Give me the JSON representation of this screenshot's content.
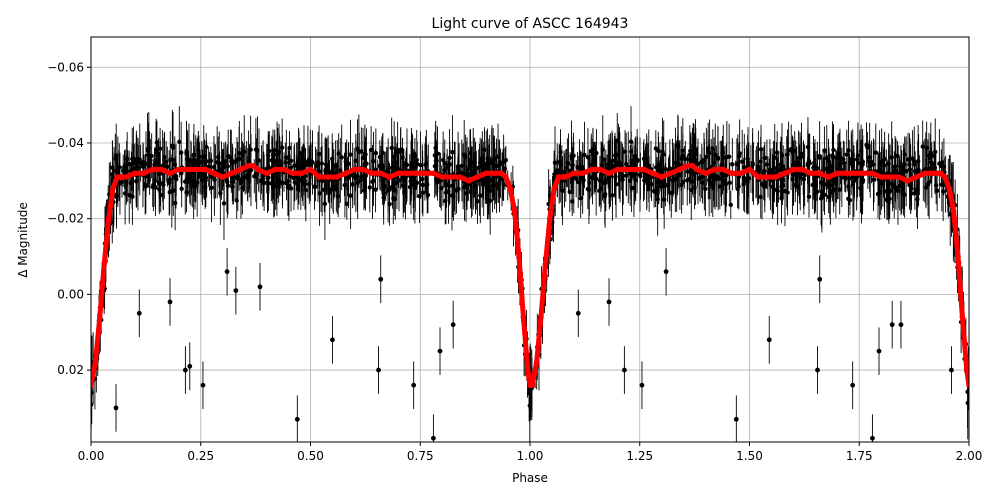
{
  "chart_data": {
    "type": "scatter",
    "title": "Light curve of ASCC 164943",
    "xlabel": "Phase",
    "ylabel": "Δ Magnitude",
    "xlim": [
      0.0,
      2.0
    ],
    "ylim": [
      0.039,
      -0.068
    ],
    "y_inverted": true,
    "grid": true,
    "x_ticks": [
      0.0,
      0.25,
      0.5,
      0.75,
      1.0,
      1.25,
      1.5,
      1.75,
      2.0
    ],
    "x_tick_labels": [
      "0.00",
      "0.25",
      "0.50",
      "0.75",
      "1.00",
      "1.25",
      "1.50",
      "1.75",
      "2.00"
    ],
    "y_ticks": [
      -0.06,
      -0.04,
      -0.02,
      0.0,
      0.02
    ],
    "y_tick_labels": [
      "−0.06",
      "−0.04",
      "−0.02",
      "0.00",
      "0.02"
    ],
    "series": [
      {
        "kind": "observations",
        "color": "#000000",
        "style": "points with vertical error bars",
        "baseline_mean": -0.031,
        "baseline_scatter": 0.008,
        "typical_error": 0.007,
        "outliers": [
          {
            "x": 0.057,
            "y": 0.03
          },
          {
            "x": 0.11,
            "y": 0.005
          },
          {
            "x": 0.18,
            "y": 0.002
          },
          {
            "x": 0.215,
            "y": 0.02
          },
          {
            "x": 0.225,
            "y": 0.019
          },
          {
            "x": 0.255,
            "y": 0.024
          },
          {
            "x": 0.31,
            "y": -0.006
          },
          {
            "x": 0.33,
            "y": -0.001
          },
          {
            "x": 0.385,
            "y": -0.002
          },
          {
            "x": 0.47,
            "y": 0.033
          },
          {
            "x": 0.55,
            "y": 0.012
          },
          {
            "x": 0.655,
            "y": 0.02
          },
          {
            "x": 0.66,
            "y": -0.004
          },
          {
            "x": 0.735,
            "y": 0.024
          },
          {
            "x": 0.78,
            "y": 0.038
          },
          {
            "x": 0.795,
            "y": 0.015
          },
          {
            "x": 0.825,
            "y": 0.008
          },
          {
            "x": 1.11,
            "y": 0.005
          },
          {
            "x": 1.18,
            "y": 0.002
          },
          {
            "x": 1.215,
            "y": 0.02
          },
          {
            "x": 1.255,
            "y": 0.024
          },
          {
            "x": 1.31,
            "y": -0.006
          },
          {
            "x": 1.47,
            "y": 0.033
          },
          {
            "x": 1.545,
            "y": 0.012
          },
          {
            "x": 1.655,
            "y": 0.02
          },
          {
            "x": 1.66,
            "y": -0.004
          },
          {
            "x": 1.735,
            "y": 0.024
          },
          {
            "x": 1.78,
            "y": 0.038
          },
          {
            "x": 1.795,
            "y": 0.015
          },
          {
            "x": 1.825,
            "y": 0.008
          },
          {
            "x": 1.845,
            "y": 0.008
          },
          {
            "x": 1.96,
            "y": 0.02
          }
        ]
      },
      {
        "kind": "binned-model",
        "color": "#ff0000",
        "style": "thick line of red dots",
        "x": [
          0.0,
          0.01,
          0.02,
          0.03,
          0.04,
          0.05,
          0.06,
          0.07,
          0.08,
          0.1,
          0.12,
          0.14,
          0.16,
          0.18,
          0.2,
          0.22,
          0.24,
          0.26,
          0.28,
          0.3,
          0.32,
          0.34,
          0.36,
          0.37,
          0.38,
          0.4,
          0.42,
          0.44,
          0.46,
          0.48,
          0.5,
          0.52,
          0.54,
          0.56,
          0.58,
          0.6,
          0.62,
          0.64,
          0.66,
          0.68,
          0.7,
          0.72,
          0.74,
          0.76,
          0.78,
          0.8,
          0.82,
          0.84,
          0.86,
          0.88,
          0.9,
          0.92,
          0.935,
          0.945,
          0.955,
          0.965,
          0.975,
          0.985,
          0.995,
          1.0,
          1.005,
          1.015,
          1.025,
          1.035,
          1.045,
          1.055,
          1.065,
          1.075,
          1.08,
          1.1,
          1.12,
          1.14,
          1.16,
          1.18,
          1.2,
          1.22,
          1.24,
          1.26,
          1.28,
          1.3,
          1.32,
          1.34,
          1.36,
          1.37,
          1.38,
          1.4,
          1.42,
          1.44,
          1.46,
          1.48,
          1.5,
          1.52,
          1.54,
          1.56,
          1.58,
          1.6,
          1.62,
          1.64,
          1.66,
          1.68,
          1.7,
          1.72,
          1.74,
          1.76,
          1.78,
          1.8,
          1.82,
          1.84,
          1.86,
          1.88,
          1.9,
          1.92,
          1.935,
          1.945,
          1.955,
          1.965,
          1.975,
          1.985,
          1.995,
          2.0
        ],
        "y": [
          0.024,
          0.018,
          0.006,
          -0.008,
          -0.02,
          -0.028,
          -0.031,
          -0.031,
          -0.031,
          -0.032,
          -0.032,
          -0.033,
          -0.033,
          -0.032,
          -0.033,
          -0.033,
          -0.033,
          -0.033,
          -0.032,
          -0.031,
          -0.032,
          -0.033,
          -0.034,
          -0.034,
          -0.033,
          -0.032,
          -0.033,
          -0.033,
          -0.032,
          -0.032,
          -0.033,
          -0.031,
          -0.031,
          -0.031,
          -0.032,
          -0.033,
          -0.033,
          -0.032,
          -0.032,
          -0.031,
          -0.032,
          -0.032,
          -0.032,
          -0.032,
          -0.032,
          -0.031,
          -0.031,
          -0.031,
          -0.03,
          -0.031,
          -0.032,
          -0.032,
          -0.032,
          -0.031,
          -0.028,
          -0.022,
          -0.01,
          0.006,
          0.02,
          0.024,
          0.024,
          0.018,
          0.006,
          -0.008,
          -0.02,
          -0.028,
          -0.031,
          -0.031,
          -0.031,
          -0.032,
          -0.032,
          -0.033,
          -0.033,
          -0.032,
          -0.033,
          -0.033,
          -0.033,
          -0.033,
          -0.032,
          -0.031,
          -0.032,
          -0.033,
          -0.034,
          -0.034,
          -0.033,
          -0.032,
          -0.033,
          -0.033,
          -0.032,
          -0.032,
          -0.033,
          -0.031,
          -0.031,
          -0.031,
          -0.032,
          -0.033,
          -0.033,
          -0.032,
          -0.032,
          -0.031,
          -0.032,
          -0.032,
          -0.032,
          -0.032,
          -0.032,
          -0.031,
          -0.031,
          -0.031,
          -0.03,
          -0.031,
          -0.032,
          -0.032,
          -0.032,
          -0.031,
          -0.028,
          -0.022,
          -0.01,
          0.006,
          0.02,
          0.024
        ]
      }
    ]
  }
}
